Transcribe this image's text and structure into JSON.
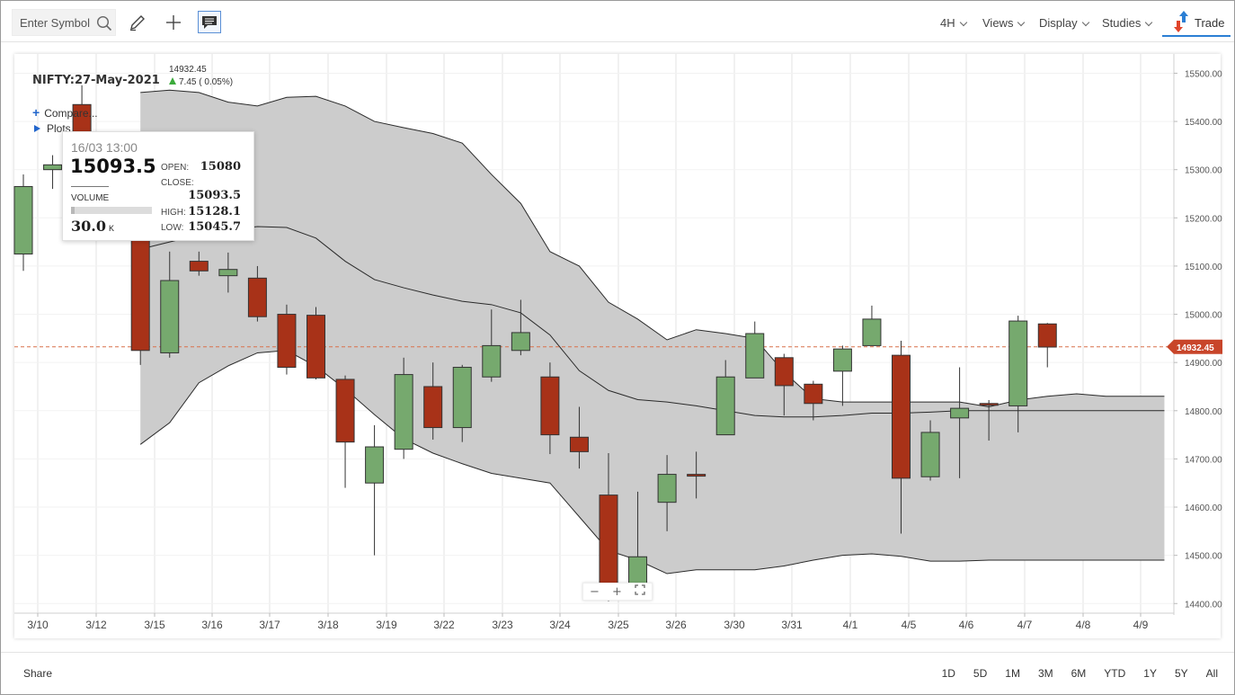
{
  "toolbar": {
    "search_placeholder": "Enter Symbol",
    "menus": [
      "4H",
      "Views",
      "Display",
      "Studies"
    ],
    "trade_label": "Trade"
  },
  "legend": {
    "title": "NIFTY:27-May-2021",
    "price": "14932.45",
    "change": "7.45 ( 0.05%)",
    "compare_label": "Compare...",
    "plots_label": "Plots"
  },
  "tooltip": {
    "date": "16/03 13:00",
    "close": "15093.5",
    "open_label": "OPEN:",
    "open": "15080",
    "close_label": "CLOSE:",
    "close_val": "15093.5",
    "high_label": "HIGH:",
    "high": "15128.1",
    "low_label": "LOW:",
    "low": "15045.7",
    "volume_label": "VOLUME",
    "volume": "30.0",
    "volume_unit": "K",
    "volume_fraction": 0.04
  },
  "footer": {
    "share_label": "Share",
    "ranges": [
      "1D",
      "5D",
      "1M",
      "3M",
      "6M",
      "YTD",
      "1Y",
      "5Y",
      "All"
    ]
  },
  "chart_data": {
    "type": "candlestick",
    "title": "",
    "xlabel": "",
    "ylabel": "",
    "ylim": [
      14380,
      15540
    ],
    "y_ticks": [
      14400,
      14500,
      14600,
      14700,
      14800,
      14900,
      15000,
      15100,
      15200,
      15300,
      15400,
      15500
    ],
    "y_tick_labels": [
      "14400.00",
      "14500.00",
      "14600.00",
      "14700.00",
      "14800.00",
      "14900.00",
      "15000.00",
      "15100.00",
      "15200.00",
      "15300.00",
      "15400.00",
      "15500.00"
    ],
    "x_tick_labels": [
      "3/10",
      "3/12",
      "3/15",
      "3/16",
      "3/17",
      "3/18",
      "3/19",
      "3/22",
      "3/23",
      "3/24",
      "3/25",
      "3/26",
      "3/30",
      "3/31",
      "4/1",
      "4/5",
      "4/6",
      "4/7",
      "4/8",
      "4/9"
    ],
    "last_price": 14932.45,
    "last_price_label": "14932.45",
    "grid": true,
    "colors": {
      "up": "#76a96e",
      "down": "#a83218",
      "band_fill": "#cccccc",
      "band_line": "#2a2a2a",
      "last_price_line": "#d9704a"
    },
    "candles": [
      {
        "o": 15125,
        "h": 15290,
        "l": 15090,
        "c": 15265
      },
      {
        "o": 15300,
        "h": 15330,
        "l": 15260,
        "c": 15310
      },
      {
        "o": 15435,
        "h": 15475,
        "l": 15325,
        "c": 15338
      },
      {
        "o": null,
        "h": null,
        "l": null,
        "c": null
      },
      {
        "o": 15280,
        "h": 15310,
        "l": 14895,
        "c": 14925
      },
      {
        "o": 14920,
        "h": 15130,
        "l": 14910,
        "c": 15070
      },
      {
        "o": 15110,
        "h": 15130,
        "l": 15080,
        "c": 15090
      },
      {
        "o": 15080,
        "h": 15128,
        "l": 15045,
        "c": 15093
      },
      {
        "o": 15075,
        "h": 15100,
        "l": 14985,
        "c": 14995
      },
      {
        "o": 15000,
        "h": 15020,
        "l": 14875,
        "c": 14890
      },
      {
        "o": 14998,
        "h": 15015,
        "l": 14865,
        "c": 14868
      },
      {
        "o": 14865,
        "h": 14873,
        "l": 14640,
        "c": 14735
      },
      {
        "o": 14650,
        "h": 14770,
        "l": 14500,
        "c": 14725
      },
      {
        "o": 14720,
        "h": 14910,
        "l": 14700,
        "c": 14875
      },
      {
        "o": 14850,
        "h": 14900,
        "l": 14740,
        "c": 14765
      },
      {
        "o": 14765,
        "h": 14895,
        "l": 14735,
        "c": 14890
      },
      {
        "o": 14870,
        "h": 15010,
        "l": 14860,
        "c": 14935
      },
      {
        "o": 14925,
        "h": 15030,
        "l": 14915,
        "c": 14962
      },
      {
        "o": 14870,
        "h": 14900,
        "l": 14710,
        "c": 14750
      },
      {
        "o": 14745,
        "h": 14808,
        "l": 14680,
        "c": 14715
      },
      {
        "o": 14625,
        "h": 14712,
        "l": 14405,
        "c": 14440
      },
      {
        "o": 14435,
        "h": 14632,
        "l": 14435,
        "c": 14497
      },
      {
        "o": 14610,
        "h": 14708,
        "l": 14550,
        "c": 14668
      },
      {
        "o": 14668,
        "h": 14715,
        "l": 14618,
        "c": 14665
      },
      {
        "o": 14750,
        "h": 14905,
        "l": 14750,
        "c": 14870
      },
      {
        "o": 14868,
        "h": 14985,
        "l": 14868,
        "c": 14960
      },
      {
        "o": 14910,
        "h": 14918,
        "l": 14790,
        "c": 14852
      },
      {
        "o": 14855,
        "h": 14862,
        "l": 14780,
        "c": 14815
      },
      {
        "o": 14882,
        "h": 14935,
        "l": 14810,
        "c": 14928
      },
      {
        "o": 14935,
        "h": 15018,
        "l": 14935,
        "c": 14990
      },
      {
        "o": 14915,
        "h": 14945,
        "l": 14545,
        "c": 14660
      },
      {
        "o": 14663,
        "h": 14780,
        "l": 14655,
        "c": 14755
      },
      {
        "o": 14785,
        "h": 14890,
        "l": 14660,
        "c": 14805
      },
      {
        "o": 14815,
        "h": 14822,
        "l": 14738,
        "c": 14812
      },
      {
        "o": 14810,
        "h": 14997,
        "l": 14755,
        "c": 14986
      },
      {
        "o": 14980,
        "h": 14982,
        "l": 14890,
        "c": 14932
      }
    ],
    "bands": {
      "start_index": 4,
      "upper": [
        15460,
        15465,
        15460,
        15440,
        15432,
        15450,
        15452,
        15432,
        15400,
        15387,
        15375,
        15355,
        15290,
        15230,
        15130,
        15100,
        15025,
        14990,
        14947,
        14968,
        14960,
        14950,
        14880,
        14825,
        14818,
        14818,
        14818,
        14818,
        14818,
        14808,
        14822,
        14830,
        14835,
        14830,
        14830,
        14830
      ],
      "middle": [
        15135,
        15150,
        15165,
        15175,
        15182,
        15180,
        15158,
        15110,
        15072,
        15055,
        15040,
        15027,
        15020,
        15003,
        14957,
        14883,
        14842,
        14823,
        14818,
        14810,
        14800,
        14790,
        14787,
        14787,
        14790,
        14795,
        14795,
        14797,
        14800,
        14800,
        14800,
        14800,
        14800,
        14800,
        14800,
        14800
      ],
      "lower": [
        14730,
        14775,
        14858,
        14893,
        14920,
        14925,
        14892,
        14845,
        14792,
        14742,
        14712,
        14690,
        14670,
        14660,
        14650,
        14580,
        14510,
        14490,
        14462,
        14470,
        14470,
        14470,
        14478,
        14490,
        14500,
        14503,
        14498,
        14488,
        14488,
        14490,
        14490,
        14490,
        14490,
        14490,
        14490,
        14490
      ]
    }
  }
}
